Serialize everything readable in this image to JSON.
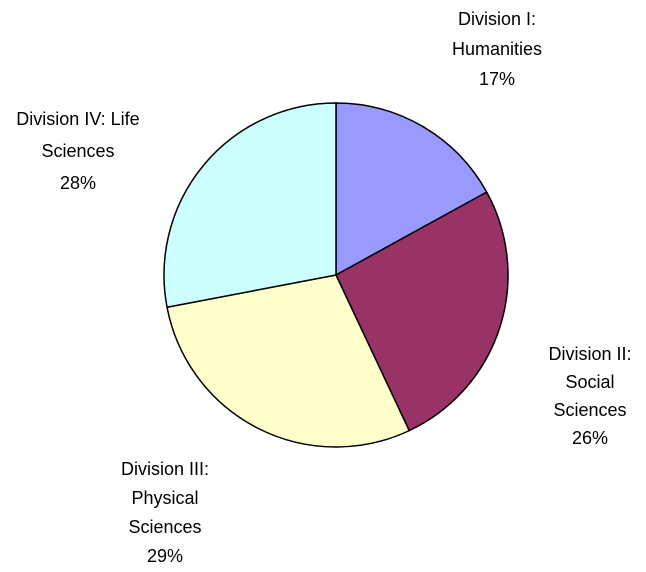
{
  "chart_data": {
    "type": "pie",
    "categories": [
      "Division I: Humanities",
      "Division II: Social Sciences",
      "Division III: Physical Sciences",
      "Division IV: Life Sciences"
    ],
    "values": [
      17,
      26,
      29,
      28
    ],
    "value_labels": [
      "17%",
      "26%",
      "29%",
      "28%"
    ],
    "colors": [
      "#9999ff",
      "#993366",
      "#ffffcc",
      "#ccffff"
    ]
  }
}
